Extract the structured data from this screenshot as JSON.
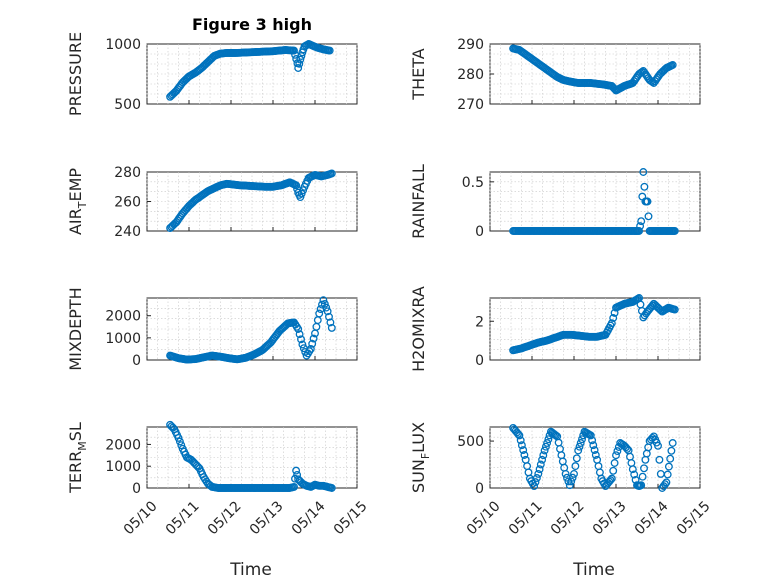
{
  "figure_title": "Figure 3 high",
  "colors": {
    "marker": "#0072BD",
    "axis": "#262626",
    "grid": "#c8c8c8"
  },
  "chart_data": [
    {
      "type": "scatter",
      "ylabel": "PRESSURE",
      "yticks": [
        500,
        1000
      ],
      "ylim": [
        500,
        1000
      ],
      "xticks": [
        "05/10",
        "05/11",
        "05/12",
        "05/13",
        "05/14",
        "05/15"
      ],
      "xlim": [
        0,
        5
      ],
      "grid": true,
      "x": [
        0.55,
        0.7,
        0.85,
        1.0,
        1.15,
        1.3,
        1.45,
        1.6,
        1.75,
        1.9,
        2.1,
        2.4,
        2.7,
        3.0,
        3.3,
        3.5,
        3.58,
        3.6,
        3.65,
        3.7,
        3.75,
        3.85,
        3.95,
        4.05,
        4.2,
        4.35
      ],
      "y": [
        560,
        610,
        680,
        730,
        760,
        800,
        850,
        900,
        920,
        925,
        925,
        930,
        935,
        940,
        950,
        945,
        840,
        800,
        870,
        930,
        980,
        1000,
        985,
        970,
        955,
        945
      ]
    },
    {
      "type": "scatter",
      "ylabel": "THETA",
      "yticks": [
        270,
        280,
        290
      ],
      "ylim": [
        270,
        290
      ],
      "xticks": [
        "05/10",
        "05/11",
        "05/12",
        "05/13",
        "05/14",
        "05/15"
      ],
      "xlim": [
        0,
        5
      ],
      "grid": true,
      "x": [
        0.55,
        0.7,
        0.85,
        1.0,
        1.15,
        1.3,
        1.45,
        1.6,
        1.75,
        1.9,
        2.1,
        2.4,
        2.7,
        2.9,
        3.0,
        3.2,
        3.4,
        3.55,
        3.65,
        3.8,
        3.9,
        4.05,
        4.2,
        4.35
      ],
      "y": [
        288.5,
        288,
        286.5,
        285,
        283.5,
        282,
        280.5,
        279,
        278,
        277.5,
        277,
        277,
        276.5,
        276,
        274.5,
        276,
        277,
        280,
        281,
        278,
        277,
        280,
        282,
        283
      ]
    },
    {
      "type": "scatter",
      "ylabel": "AIR_TEMP",
      "yticks": [
        240,
        260,
        280
      ],
      "ylim": [
        240,
        280
      ],
      "xticks": [
        "05/10",
        "05/11",
        "05/12",
        "05/13",
        "05/14",
        "05/15"
      ],
      "xlim": [
        0,
        5
      ],
      "grid": true,
      "x": [
        0.55,
        0.7,
        0.85,
        1.0,
        1.15,
        1.3,
        1.45,
        1.6,
        1.75,
        1.9,
        2.2,
        2.5,
        2.8,
        3.0,
        3.2,
        3.4,
        3.55,
        3.6,
        3.65,
        3.75,
        3.85,
        4.0,
        4.15,
        4.3,
        4.4
      ],
      "y": [
        242,
        246,
        252,
        257,
        261,
        264,
        267,
        269,
        271,
        272,
        271,
        270.5,
        270,
        270,
        271,
        273,
        271,
        266,
        263,
        270,
        276,
        278,
        277,
        278,
        279
      ]
    },
    {
      "type": "scatter",
      "ylabel": "RAINFALL",
      "yticks": [
        0,
        0.5
      ],
      "ylim": [
        0,
        0.6
      ],
      "xticks": [
        "05/10",
        "05/11",
        "05/12",
        "05/13",
        "05/14",
        "05/15"
      ],
      "xlim": [
        0,
        5
      ],
      "grid": true,
      "x": [
        0.55,
        0.8,
        1.0,
        1.3,
        1.6,
        1.9,
        2.2,
        2.5,
        2.8,
        3.1,
        3.4,
        3.55,
        3.6,
        3.65,
        3.7,
        3.75,
        3.8,
        4.0,
        4.2,
        4.4
      ],
      "y": [
        0,
        0,
        0,
        0,
        0,
        0,
        0,
        0,
        0,
        0,
        0,
        0,
        0.1,
        0.6,
        0.3,
        0.3,
        0,
        0,
        0,
        0
      ]
    },
    {
      "type": "scatter",
      "ylabel": "MIXDEPTH",
      "yticks": [
        0,
        1000,
        2000
      ],
      "ylim": [
        0,
        2800
      ],
      "xticks": [
        "05/10",
        "05/11",
        "05/12",
        "05/13",
        "05/14",
        "05/15"
      ],
      "xlim": [
        0,
        5
      ],
      "grid": true,
      "x": [
        0.55,
        0.75,
        0.95,
        1.15,
        1.35,
        1.55,
        1.75,
        1.95,
        2.15,
        2.35,
        2.55,
        2.75,
        2.95,
        3.15,
        3.35,
        3.5,
        3.6,
        3.7,
        3.8,
        3.9,
        4.0,
        4.1,
        4.2,
        4.3,
        4.4
      ],
      "y": [
        200,
        80,
        20,
        40,
        120,
        200,
        150,
        80,
        30,
        100,
        250,
        450,
        800,
        1300,
        1650,
        1700,
        1400,
        700,
        200,
        500,
        1200,
        2100,
        2700,
        2200,
        1450
      ]
    },
    {
      "type": "scatter",
      "ylabel": "H2OMIXRA",
      "yticks": [
        0,
        2
      ],
      "ylim": [
        0,
        3.2
      ],
      "xticks": [
        "05/10",
        "05/11",
        "05/12",
        "05/13",
        "05/14",
        "05/15"
      ],
      "xlim": [
        0,
        5
      ],
      "grid": true,
      "x": [
        0.55,
        0.75,
        0.95,
        1.15,
        1.35,
        1.55,
        1.75,
        1.95,
        2.15,
        2.35,
        2.55,
        2.75,
        2.9,
        3.0,
        3.2,
        3.4,
        3.55,
        3.65,
        3.75,
        3.9,
        4.0,
        4.1,
        4.25,
        4.4
      ],
      "y": [
        0.5,
        0.6,
        0.75,
        0.9,
        1.0,
        1.15,
        1.3,
        1.3,
        1.25,
        1.2,
        1.2,
        1.3,
        1.9,
        2.7,
        2.9,
        3.0,
        3.2,
        2.2,
        2.5,
        2.9,
        2.7,
        2.5,
        2.7,
        2.6
      ]
    },
    {
      "type": "scatter",
      "ylabel": "TERR_MSL",
      "yticks": [
        0,
        1000,
        2000
      ],
      "ylim": [
        0,
        2800
      ],
      "xticks": [
        "05/10",
        "05/11",
        "05/12",
        "05/13",
        "05/14",
        "05/15"
      ],
      "xlim": [
        0,
        5
      ],
      "grid": true,
      "x": [
        0.55,
        0.65,
        0.75,
        0.85,
        0.95,
        1.05,
        1.15,
        1.25,
        1.35,
        1.45,
        1.55,
        1.7,
        1.9,
        2.2,
        2.5,
        2.8,
        3.1,
        3.4,
        3.5,
        3.55,
        3.6,
        3.7,
        3.8,
        3.9,
        4.0,
        4.1,
        4.2,
        4.3,
        4.4
      ],
      "y": [
        2900,
        2700,
        2300,
        1800,
        1400,
        1300,
        1100,
        900,
        500,
        200,
        50,
        0,
        0,
        0,
        0,
        0,
        0,
        0,
        50,
        800,
        400,
        200,
        100,
        50,
        150,
        100,
        100,
        50,
        0
      ]
    },
    {
      "type": "scatter",
      "ylabel": "SUN_FLUX",
      "yticks": [
        0,
        500
      ],
      "ylim": [
        0,
        650
      ],
      "xticks": [
        "05/10",
        "05/11",
        "05/12",
        "05/13",
        "05/14",
        "05/15"
      ],
      "xlim": [
        0,
        5
      ],
      "grid": true,
      "x": [
        0.55,
        0.7,
        0.85,
        0.95,
        1.05,
        1.15,
        1.3,
        1.45,
        1.6,
        1.7,
        1.8,
        1.9,
        2.0,
        2.1,
        2.25,
        2.4,
        2.55,
        2.65,
        2.75,
        2.9,
        3.0,
        3.1,
        3.2,
        3.3,
        3.4,
        3.5,
        3.55,
        3.6,
        3.7,
        3.8,
        3.9,
        4.0,
        4.1,
        4.2,
        4.35
      ],
      "y": [
        640,
        560,
        300,
        100,
        20,
        150,
        400,
        600,
        550,
        350,
        150,
        30,
        150,
        400,
        600,
        560,
        300,
        100,
        20,
        100,
        350,
        480,
        450,
        400,
        200,
        30,
        20,
        30,
        300,
        500,
        550,
        450,
        0,
        60,
        480
      ]
    }
  ],
  "xlabel": "Time",
  "ylabel_parts": {
    "AIR_TEMP": {
      "main": "AIR",
      "sub": "T",
      "rest": "EMP"
    },
    "TERR_MSL": {
      "main": "TERR",
      "sub": "M",
      "rest": "SL"
    },
    "SUN_FLUX": {
      "main": "SUN",
      "sub": "F",
      "rest": "LUX"
    }
  }
}
